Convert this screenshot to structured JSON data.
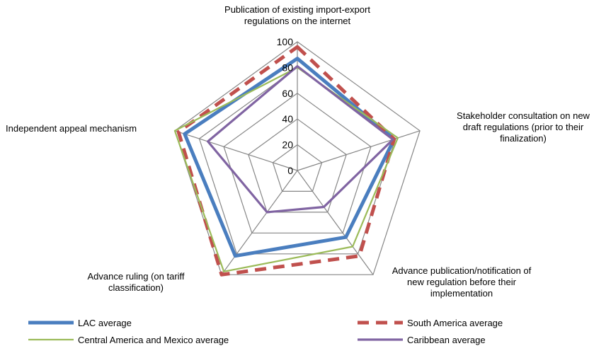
{
  "chart_data": {
    "type": "radar",
    "categories": [
      "Publication of existing import-export regulations on the internet",
      "Stakeholder consultation on new draft regulations (prior to their finalization)",
      "Advance publication/notification of new regulation before their implementation",
      "Advance ruling (on tariff classification)",
      "Independent appeal mechanism"
    ],
    "category_label_lines": [
      [
        "Publication of existing import-export",
        "regulations on the internet"
      ],
      [
        "Stakeholder consultation on new",
        "draft regulations (prior to their",
        "finalization)"
      ],
      [
        "Advance publication/notification of",
        "new regulation before their",
        "implementation"
      ],
      [
        "Advance ruling (on tariff",
        "classification)"
      ],
      [
        "Independent appeal mechanism"
      ]
    ],
    "rlim": [
      0,
      100
    ],
    "ticks": [
      "0",
      "20",
      "40",
      "60",
      "80",
      "100"
    ],
    "series": [
      {
        "name": "LAC average",
        "values": [
          87,
          79,
          64,
          82,
          92
        ],
        "color": "#4a7ebf",
        "style": "solid-thick"
      },
      {
        "name": "South America average",
        "values": [
          96,
          79,
          82,
          100,
          97
        ],
        "color": "#c0504d",
        "style": "dashed"
      },
      {
        "name": "Central America and Mexico average",
        "values": [
          80,
          82,
          73,
          97,
          100
        ],
        "color": "#9bbb59",
        "style": "solid-thin"
      },
      {
        "name": "Caribbean average",
        "values": [
          81,
          78,
          35,
          40,
          73
        ],
        "color": "#8064a2",
        "style": "solid-medium"
      }
    ],
    "grid": true,
    "legend": "bottom"
  }
}
